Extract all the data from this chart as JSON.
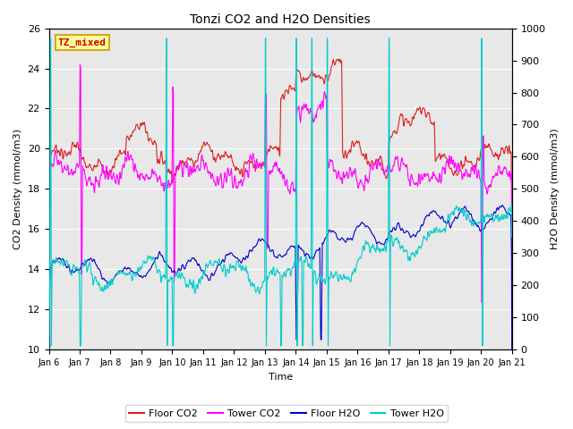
{
  "title": "Tonzi CO2 and H2O Densities",
  "xlabel": "Time",
  "ylabel_left": "CO2 Density (mmol/m3)",
  "ylabel_right": "H2O Density (mmol/m3)",
  "ylim_left": [
    10,
    26
  ],
  "ylim_right": [
    0,
    1000
  ],
  "xtick_labels": [
    "Jan 6",
    "Jan 7",
    "Jan 8",
    "Jan 9",
    "Jan 10",
    "Jan 11",
    "Jan 12",
    "Jan 13",
    "Jan 14",
    "Jan 15",
    "Jan 16",
    "Jan 17",
    "Jan 18",
    "Jan 19",
    "Jan 20",
    "Jan 21"
  ],
  "annotation_text": "TZ_mixed",
  "annotation_color": "#cc0000",
  "annotation_bg": "#ffff99",
  "annotation_border": "#cc9900",
  "colors": {
    "floor_co2": "#dd2222",
    "tower_co2": "#ff00ff",
    "floor_h2o": "#0000cc",
    "tower_h2o": "#00cccc"
  },
  "legend_labels": [
    "Floor CO2",
    "Tower CO2",
    "Floor H2O",
    "Tower H2O"
  ],
  "bg_color": "#e8e8e8",
  "grid_color": "#ffffff",
  "figsize": [
    6.4,
    4.8
  ],
  "dpi": 100
}
